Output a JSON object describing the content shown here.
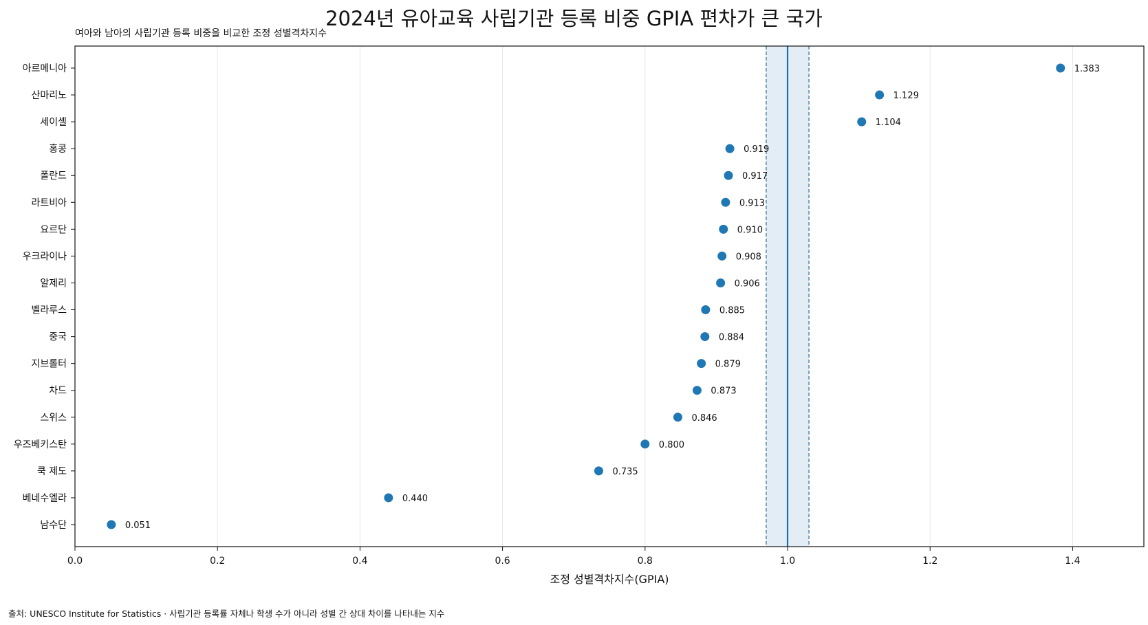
{
  "chart_data": {
    "type": "scatter",
    "title": "2024년 유아교육 사립기관 등록 비중 GPIA 편차가 큰 국가",
    "subtitle": "여아와 남아의 사립기관 등록 비중을 비교한 조정 성별격차지수",
    "xlabel": "조정 성별격차지수(GPIA)",
    "xlim": [
      0.0,
      1.5
    ],
    "xticks": [
      "0.0",
      "0.2",
      "0.4",
      "0.6",
      "0.8",
      "1.0",
      "1.2",
      "1.4"
    ],
    "xtick_values": [
      0.0,
      0.2,
      0.4,
      0.6,
      0.8,
      1.0,
      1.2,
      1.4
    ],
    "grid": "vertical",
    "parity_line": 1.0,
    "parity_band": [
      0.97,
      1.03
    ],
    "categories": [
      "아르메니아",
      "산마리노",
      "세이셸",
      "홍콩",
      "폴란드",
      "라트비아",
      "요르단",
      "우크라이나",
      "알제리",
      "벨라루스",
      "중국",
      "지브롤터",
      "차드",
      "스위스",
      "우즈베키스탄",
      "쿡 제도",
      "베네수엘라",
      "남수단"
    ],
    "values": [
      1.383,
      1.129,
      1.104,
      0.919,
      0.917,
      0.913,
      0.91,
      0.908,
      0.906,
      0.885,
      0.884,
      0.879,
      0.873,
      0.846,
      0.8,
      0.735,
      0.44,
      0.051
    ],
    "value_labels": [
      "1.383",
      "1.129",
      "1.104",
      "0.919",
      "0.917",
      "0.913",
      "0.910",
      "0.908",
      "0.906",
      "0.885",
      "0.884",
      "0.879",
      "0.873",
      "0.846",
      "0.800",
      "0.735",
      "0.440",
      "0.051"
    ],
    "colors": {
      "point": "#1f77b4",
      "parity_line": "#1f6fa3",
      "band_fill": "#e2edf6",
      "band_edge": "#2b6a8f",
      "grid": "#e6e6e6"
    }
  },
  "footer": {
    "source": "출처: UNESCO Institute for Statistics · 사립기관 등록률 자체나 학생 수가 아니라 성별 간 상대 차이를 나타내는 지수"
  }
}
